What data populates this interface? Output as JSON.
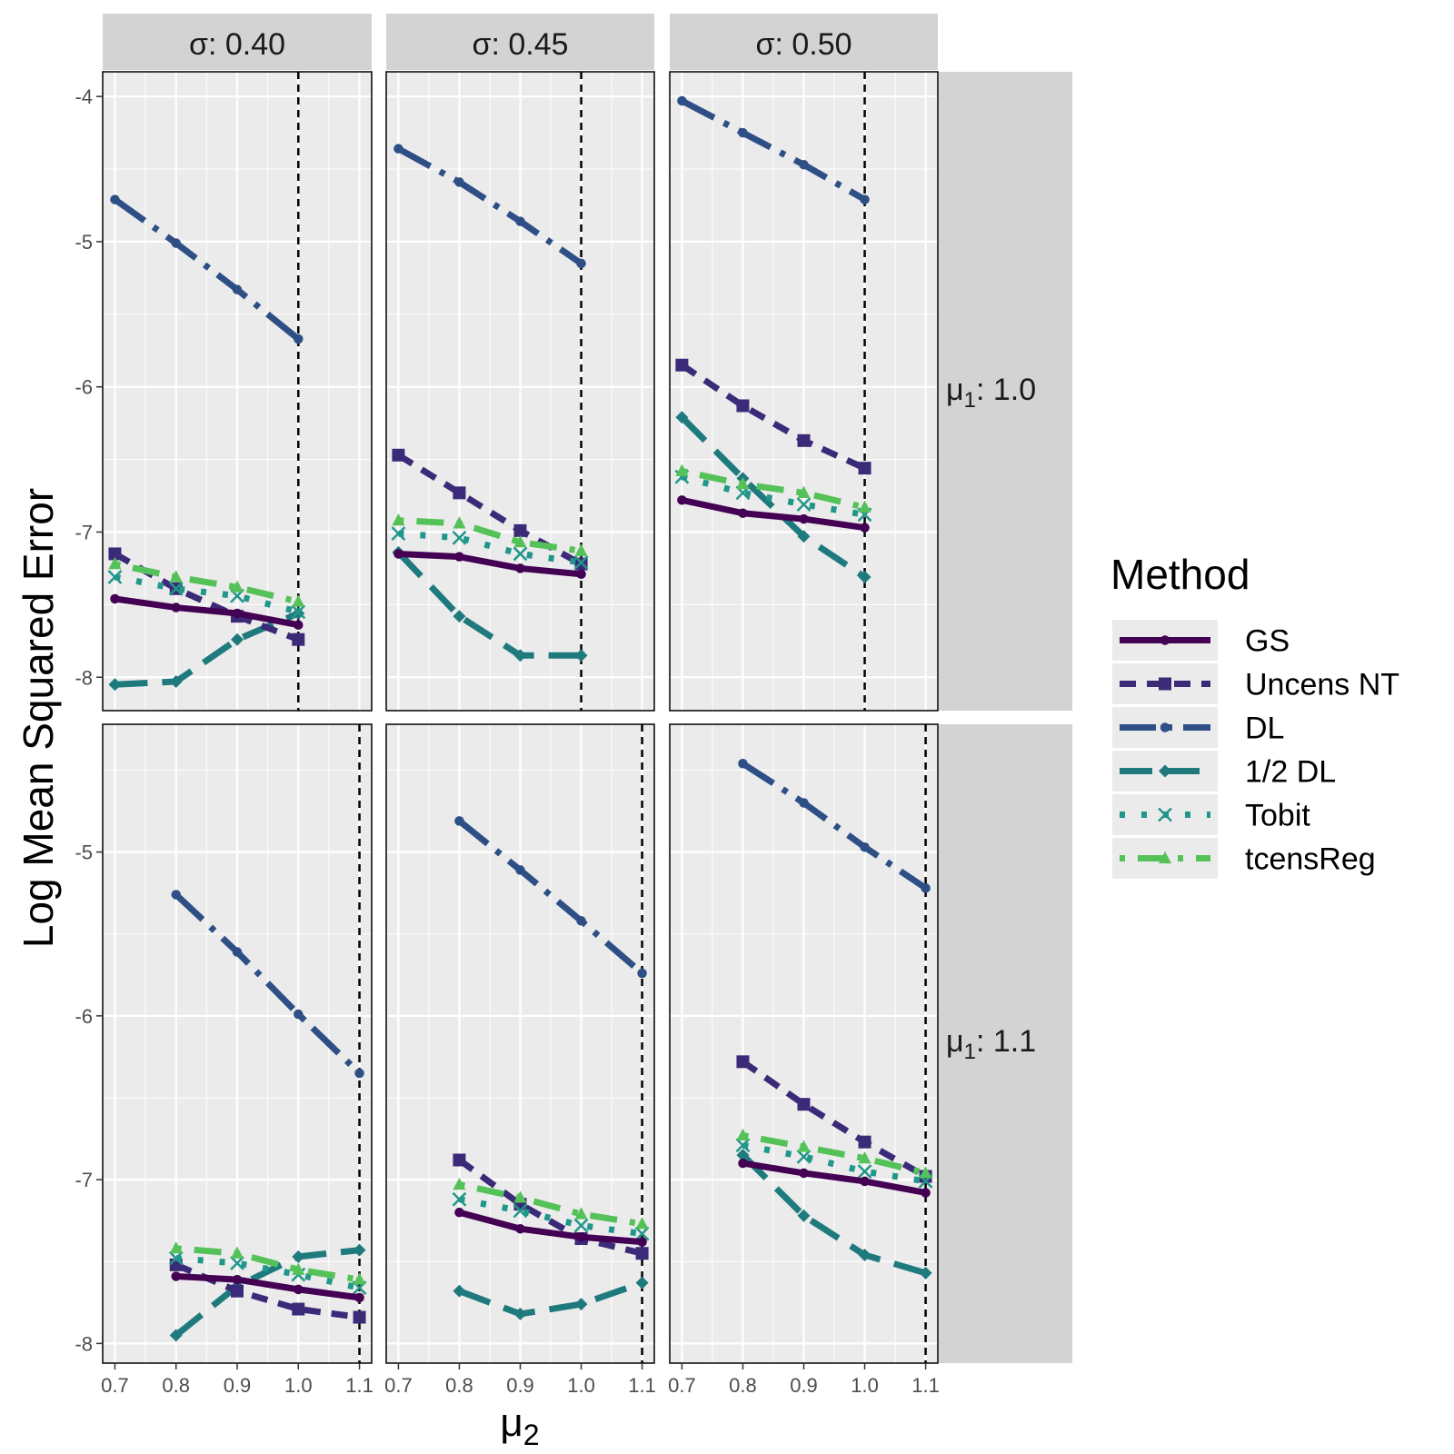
{
  "chart_data": {
    "type": "line",
    "ylabel": "Log Mean Squared Error",
    "xlabel_base": "μ",
    "xlabel_sub": "2",
    "col_facet": {
      "prefix": "σ: ",
      "values": [
        "0.40",
        "0.45",
        "0.50"
      ]
    },
    "row_facet": {
      "prefix": "μ",
      "sub": "1",
      "sep": ": ",
      "values": [
        "1.0",
        "1.1"
      ]
    },
    "x_ticks": [
      "0.7",
      "0.8",
      "0.9",
      "1.0",
      "1.1"
    ],
    "xlim": [
      0.68,
      1.12
    ],
    "rows": [
      {
        "ylim": [
          -8.23,
          -3.83
        ],
        "y_ticks": [
          "-4",
          "-5",
          "-6",
          "-7",
          "-8"
        ],
        "reference_x": 1.0
      },
      {
        "ylim": [
          -8.12,
          -4.22
        ],
        "y_ticks": [
          "-5",
          "-6",
          "-7",
          "-8"
        ],
        "reference_x": 1.1
      }
    ],
    "legend": {
      "title": "Method",
      "position": "right"
    },
    "methods": [
      {
        "name": "GS",
        "color": "#440154",
        "dash": "",
        "width": 7,
        "marker": "circle"
      },
      {
        "name": "Uncens NT",
        "color": "#3b2a78",
        "dash": "18 12",
        "width": 7,
        "marker": "square"
      },
      {
        "name": "DL",
        "color": "#2e4f85",
        "dash": "40 12 6 12",
        "width": 7,
        "marker": "circle"
      },
      {
        "name": "1/2 DL",
        "color": "#1f7a7e",
        "dash": "36 16",
        "width": 7,
        "marker": "diamond"
      },
      {
        "name": "Tobit",
        "color": "#21968a",
        "dash": "6 18",
        "width": 7,
        "marker": "x"
      },
      {
        "name": "tcensReg",
        "color": "#54c258",
        "dash": "6 14 30 14",
        "width": 7,
        "marker": "triangle"
      }
    ],
    "panels": [
      {
        "row": 0,
        "col": 0,
        "x": [
          0.7,
          0.8,
          0.9,
          1.0
        ],
        "series": {
          "GS": [
            -7.46,
            -7.52,
            -7.56,
            -7.64
          ],
          "Uncens NT": [
            -7.15,
            -7.39,
            -7.58,
            -7.74
          ],
          "DL": [
            -4.71,
            -5.01,
            -5.33,
            -5.67
          ],
          "1/2 DL": [
            -8.05,
            -8.03,
            -7.74,
            -7.56
          ],
          "Tobit": [
            -7.31,
            -7.39,
            -7.44,
            -7.55
          ],
          "tcensReg": [
            -7.22,
            -7.31,
            -7.38,
            -7.48
          ]
        }
      },
      {
        "row": 0,
        "col": 1,
        "x": [
          0.7,
          0.8,
          0.9,
          1.0
        ],
        "series": {
          "GS": [
            -7.15,
            -7.17,
            -7.25,
            -7.29
          ],
          "Uncens NT": [
            -6.47,
            -6.73,
            -6.99,
            -7.22
          ],
          "DL": [
            -4.36,
            -4.59,
            -4.86,
            -5.15
          ],
          "1/2 DL": [
            -7.14,
            -7.58,
            -7.85,
            -7.85
          ],
          "Tobit": [
            -7.01,
            -7.04,
            -7.15,
            -7.21
          ],
          "tcensReg": [
            -6.92,
            -6.94,
            -7.07,
            -7.13
          ]
        }
      },
      {
        "row": 0,
        "col": 2,
        "x": [
          0.7,
          0.8,
          0.9,
          1.0
        ],
        "series": {
          "GS": [
            -6.78,
            -6.87,
            -6.91,
            -6.97
          ],
          "Uncens NT": [
            -5.85,
            -6.13,
            -6.37,
            -6.56
          ],
          "DL": [
            -4.03,
            -4.25,
            -4.47,
            -4.71
          ],
          "1/2 DL": [
            -6.21,
            -6.63,
            -7.03,
            -7.31
          ],
          "Tobit": [
            -6.62,
            -6.73,
            -6.81,
            -6.88
          ],
          "tcensReg": [
            -6.58,
            -6.67,
            -6.73,
            -6.83
          ]
        }
      },
      {
        "row": 1,
        "col": 0,
        "x": [
          0.8,
          0.9,
          1.0,
          1.1
        ],
        "series": {
          "GS": [
            -7.59,
            -7.61,
            -7.67,
            -7.72
          ],
          "Uncens NT": [
            -7.52,
            -7.68,
            -7.79,
            -7.84
          ],
          "DL": [
            -5.26,
            -5.61,
            -5.99,
            -6.35
          ],
          "1/2 DL": [
            -7.95,
            -7.65,
            -7.47,
            -7.43
          ],
          "Tobit": [
            -7.48,
            -7.51,
            -7.58,
            -7.66
          ],
          "tcensReg": [
            -7.42,
            -7.45,
            -7.55,
            -7.61
          ]
        }
      },
      {
        "row": 1,
        "col": 1,
        "x": [
          0.8,
          0.9,
          1.0,
          1.1
        ],
        "series": {
          "GS": [
            -7.2,
            -7.3,
            -7.35,
            -7.38
          ],
          "Uncens NT": [
            -6.88,
            -7.15,
            -7.36,
            -7.45
          ],
          "DL": [
            -4.81,
            -5.11,
            -5.42,
            -5.74
          ],
          "1/2 DL": [
            -7.68,
            -7.82,
            -7.76,
            -7.63
          ],
          "Tobit": [
            -7.12,
            -7.19,
            -7.28,
            -7.33
          ],
          "tcensReg": [
            -7.03,
            -7.11,
            -7.21,
            -7.27
          ]
        }
      },
      {
        "row": 1,
        "col": 2,
        "x": [
          0.8,
          0.9,
          1.0,
          1.1
        ],
        "series": {
          "GS": [
            -6.9,
            -6.96,
            -7.01,
            -7.08
          ],
          "Uncens NT": [
            -6.28,
            -6.54,
            -6.77,
            -6.98
          ],
          "DL": [
            -4.46,
            -4.7,
            -4.97,
            -5.22
          ],
          "1/2 DL": [
            -6.85,
            -7.22,
            -7.46,
            -7.57
          ],
          "Tobit": [
            -6.79,
            -6.86,
            -6.95,
            -7.01
          ],
          "tcensReg": [
            -6.73,
            -6.8,
            -6.87,
            -6.96
          ]
        }
      }
    ]
  }
}
